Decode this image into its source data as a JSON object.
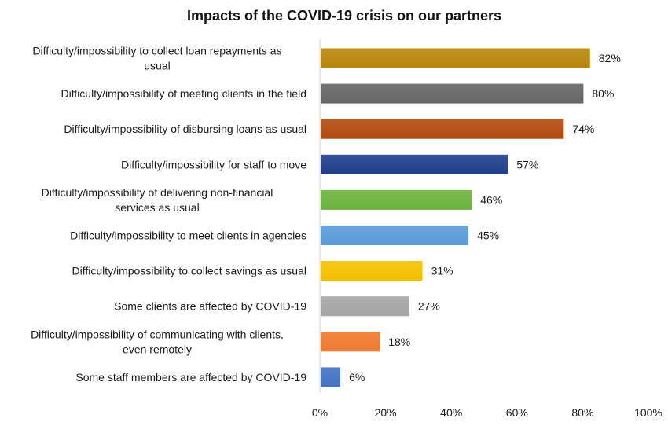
{
  "chart_data": {
    "type": "bar",
    "orientation": "horizontal",
    "title": "Impacts of the COVID-19 crisis on our partners",
    "xlabel": "",
    "ylabel": "",
    "xlim": [
      0,
      100
    ],
    "x_ticks": [
      "0%",
      "20%",
      "40%",
      "60%",
      "80%",
      "100%"
    ],
    "x_tick_values": [
      0,
      20,
      40,
      60,
      80,
      100
    ],
    "grid": false,
    "legend": false,
    "categories": [
      [
        "Difficulty/impossibility to collect loan repayments as",
        "usual"
      ],
      [
        "Difficulty/impossibility of meeting clients in the field"
      ],
      [
        "Difficulty/impossibility of disbursing loans as usual"
      ],
      [
        "Difficulty/impossibility for staff to move"
      ],
      [
        "Difficulty/impossibility of delivering non-financial",
        "services as usual"
      ],
      [
        "Difficulty/impossibility to meet clients in agencies"
      ],
      [
        "Difficulty/impossibility to collect savings as usual"
      ],
      [
        "Some clients are affected by COVID-19"
      ],
      [
        "Difficulty/impossibility of communicating with clients,",
        "even remotely"
      ],
      [
        "Some staff members are affected by COVID-19"
      ]
    ],
    "values": [
      82,
      80,
      74,
      57,
      46,
      45,
      31,
      27,
      18,
      6
    ],
    "value_labels": [
      "82%",
      "80%",
      "74%",
      "57%",
      "46%",
      "45%",
      "31%",
      "27%",
      "18%",
      "6%"
    ],
    "colors": [
      "#B8860B",
      "#666666",
      "#B24A0F",
      "#1F3F8A",
      "#6BB33E",
      "#5A9BD8",
      "#F5C000",
      "#A5A5A5",
      "#F07A2E",
      "#4472C4"
    ]
  }
}
